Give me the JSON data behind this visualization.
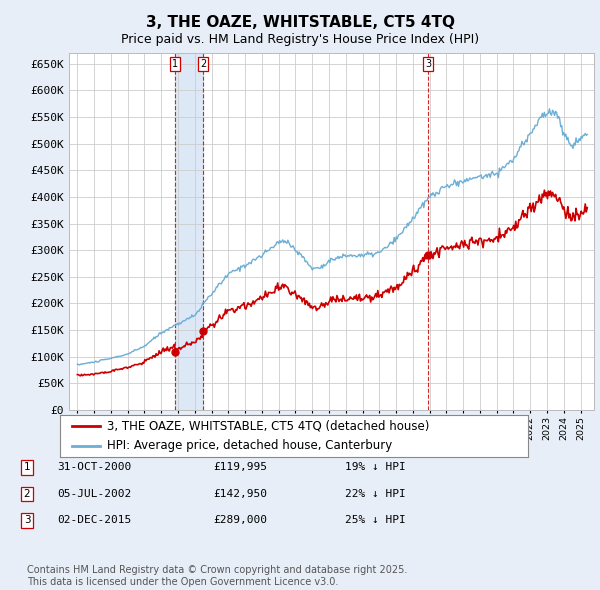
{
  "title": "3, THE OAZE, WHITSTABLE, CT5 4TQ",
  "subtitle": "Price paid vs. HM Land Registry's House Price Index (HPI)",
  "ylim": [
    0,
    670000
  ],
  "yticks": [
    0,
    50000,
    100000,
    150000,
    200000,
    250000,
    300000,
    350000,
    400000,
    450000,
    500000,
    550000,
    600000,
    650000
  ],
  "ytick_labels": [
    "£0",
    "£50K",
    "£100K",
    "£150K",
    "£200K",
    "£250K",
    "£300K",
    "£350K",
    "£400K",
    "£450K",
    "£500K",
    "£550K",
    "£600K",
    "£650K"
  ],
  "hpi_color": "#6baed6",
  "price_color": "#cc0000",
  "vline_color": "#cc0000",
  "shade_color": "#dce8f5",
  "transactions": [
    {
      "label": "1",
      "year": 2000.83,
      "price": 119995,
      "date": "31-OCT-2000",
      "pct": "19% ↓ HPI"
    },
    {
      "label": "2",
      "year": 2002.5,
      "price": 142950,
      "date": "05-JUL-2002",
      "pct": "22% ↓ HPI"
    },
    {
      "label": "3",
      "year": 2015.92,
      "price": 289000,
      "date": "02-DEC-2015",
      "pct": "25% ↓ HPI"
    }
  ],
  "legend_label_price": "3, THE OAZE, WHITSTABLE, CT5 4TQ (detached house)",
  "legend_label_hpi": "HPI: Average price, detached house, Canterbury",
  "footnote": "Contains HM Land Registry data © Crown copyright and database right 2025.\nThis data is licensed under the Open Government Licence v3.0.",
  "background_color": "#e8eef8",
  "plot_bg_color": "#ffffff",
  "grid_color": "#cccccc",
  "title_fontsize": 11,
  "subtitle_fontsize": 9,
  "tick_fontsize": 8,
  "legend_fontsize": 8.5,
  "footnote_fontsize": 7
}
